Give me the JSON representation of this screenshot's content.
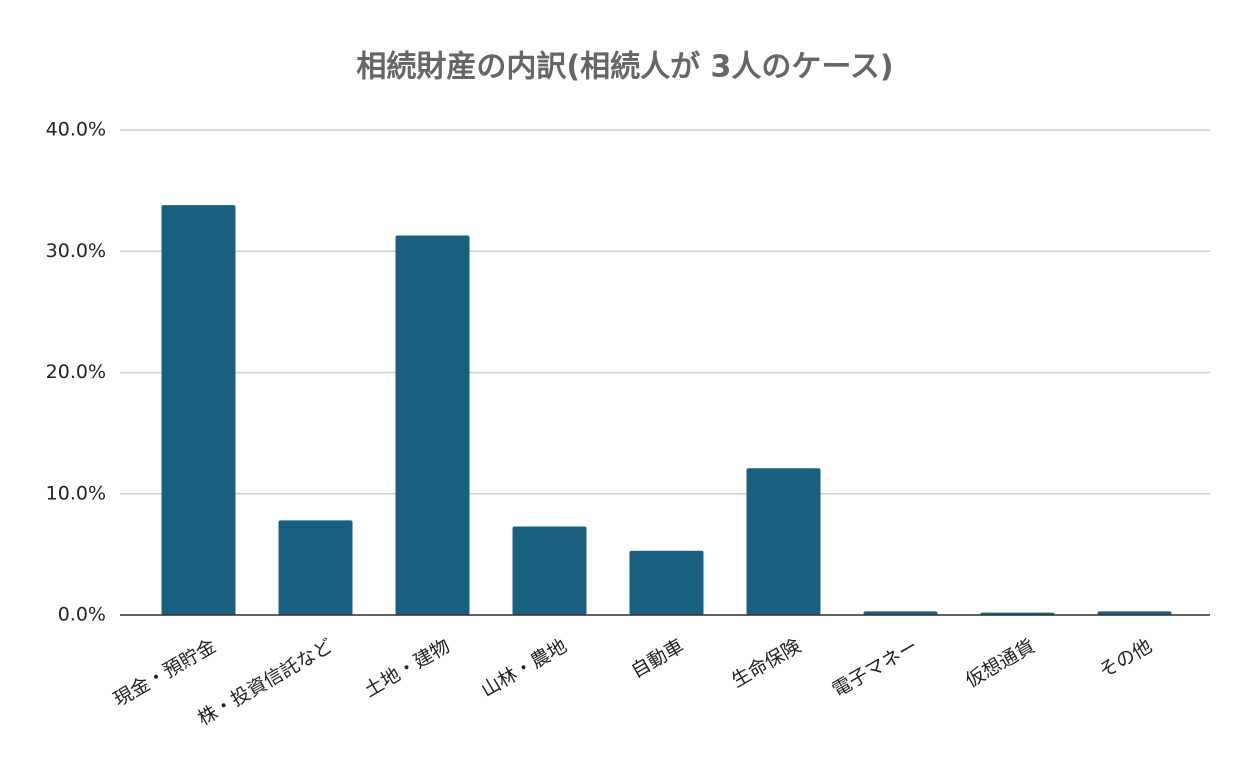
{
  "chart_data": {
    "type": "bar",
    "title": "相続財産の内訳(相続人が 3人のケース)",
    "categories": [
      "現金・預貯金",
      "株・投資信託など",
      "土地・建物",
      "山林・農地",
      "自動車",
      "生命保険",
      "電子マネー",
      "仮想通貨",
      "その他"
    ],
    "values": [
      33.8,
      7.8,
      31.3,
      7.3,
      5.3,
      12.1,
      0.3,
      0.2,
      0.3
    ],
    "color": "#185f80",
    "ylim": [
      0,
      40
    ],
    "yticks": [
      {
        "value": 0,
        "label": "0.0%"
      },
      {
        "value": 10,
        "label": "10.0%"
      },
      {
        "value": 20,
        "label": "20.0%"
      },
      {
        "value": 30,
        "label": "30.0%"
      },
      {
        "value": 40,
        "label": "40.0%"
      }
    ],
    "grid": true
  }
}
